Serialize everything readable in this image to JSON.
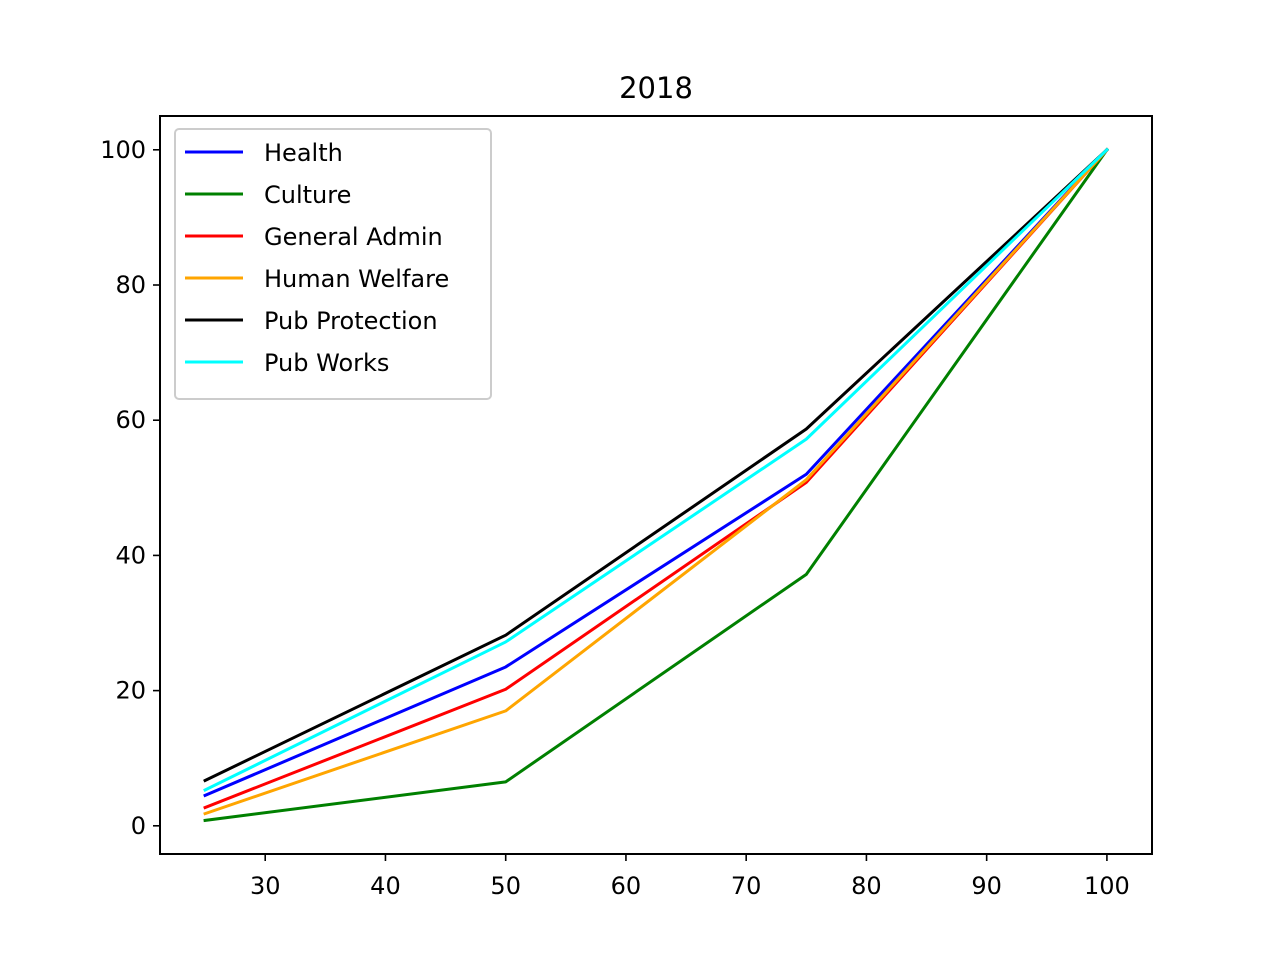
{
  "chart_data": {
    "type": "line",
    "title": "2018",
    "xlabel": "",
    "ylabel": "",
    "x": [
      25,
      50,
      75,
      100
    ],
    "xlim": [
      21.25,
      103.75
    ],
    "ylim": [
      -4.17,
      105
    ],
    "xticks": [
      30,
      40,
      50,
      60,
      70,
      80,
      90,
      100
    ],
    "yticks": [
      0,
      20,
      40,
      60,
      80,
      100
    ],
    "grid": false,
    "legend_position": "upper-left",
    "series": [
      {
        "name": "Health",
        "color": "#0000ff",
        "values": [
          4.5,
          23.5,
          52.0,
          100
        ]
      },
      {
        "name": "Culture",
        "color": "#008000",
        "values": [
          0.8,
          6.5,
          37.2,
          100
        ]
      },
      {
        "name": "General Admin",
        "color": "#ff0000",
        "values": [
          2.7,
          20.2,
          50.8,
          100
        ]
      },
      {
        "name": "Human Welfare",
        "color": "#ffa500",
        "values": [
          1.8,
          17.0,
          51.2,
          100
        ]
      },
      {
        "name": "Pub Protection",
        "color": "#000000",
        "values": [
          6.7,
          28.2,
          58.7,
          100
        ]
      },
      {
        "name": "Pub Works",
        "color": "#00ffff",
        "values": [
          5.3,
          27.2,
          57.2,
          100
        ]
      }
    ]
  }
}
